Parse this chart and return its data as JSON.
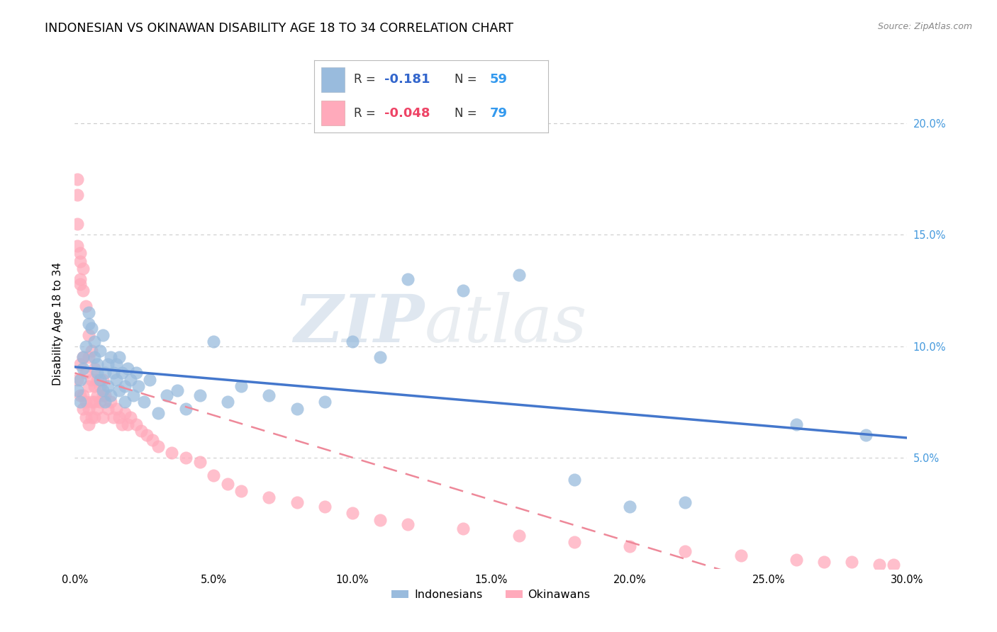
{
  "title": "INDONESIAN VS OKINAWAN DISABILITY AGE 18 TO 34 CORRELATION CHART",
  "source": "Source: ZipAtlas.com",
  "ylabel": "Disability Age 18 to 34",
  "xlim": [
    0.0,
    0.3
  ],
  "ylim": [
    0.0,
    0.22
  ],
  "blue_color": "#99BBDD",
  "pink_color": "#FFAABB",
  "blue_line_color": "#4477CC",
  "pink_line_color": "#EE8899",
  "blue_R": -0.181,
  "blue_N": 59,
  "pink_R": -0.048,
  "pink_N": 79,
  "watermark_zip": "ZIP",
  "watermark_atlas": "atlas",
  "title_fontsize": 12.5,
  "axis_label_fontsize": 11,
  "tick_fontsize": 10.5,
  "indonesian_x": [
    0.001,
    0.002,
    0.002,
    0.003,
    0.003,
    0.004,
    0.005,
    0.005,
    0.006,
    0.007,
    0.007,
    0.008,
    0.008,
    0.009,
    0.009,
    0.01,
    0.01,
    0.011,
    0.011,
    0.012,
    0.012,
    0.013,
    0.013,
    0.014,
    0.015,
    0.015,
    0.016,
    0.016,
    0.017,
    0.018,
    0.018,
    0.019,
    0.02,
    0.021,
    0.022,
    0.023,
    0.025,
    0.027,
    0.03,
    0.033,
    0.037,
    0.04,
    0.045,
    0.05,
    0.055,
    0.06,
    0.07,
    0.08,
    0.09,
    0.1,
    0.11,
    0.12,
    0.14,
    0.16,
    0.18,
    0.2,
    0.22,
    0.26,
    0.285
  ],
  "indonesian_y": [
    0.08,
    0.075,
    0.085,
    0.09,
    0.095,
    0.1,
    0.11,
    0.115,
    0.108,
    0.102,
    0.095,
    0.088,
    0.092,
    0.085,
    0.098,
    0.08,
    0.105,
    0.088,
    0.075,
    0.092,
    0.082,
    0.095,
    0.078,
    0.088,
    0.085,
    0.092,
    0.08,
    0.095,
    0.088,
    0.075,
    0.082,
    0.09,
    0.085,
    0.078,
    0.088,
    0.082,
    0.075,
    0.085,
    0.07,
    0.078,
    0.08,
    0.072,
    0.078,
    0.102,
    0.075,
    0.082,
    0.078,
    0.072,
    0.075,
    0.102,
    0.095,
    0.13,
    0.125,
    0.132,
    0.04,
    0.028,
    0.03,
    0.065,
    0.06
  ],
  "okinawan_x": [
    0.001,
    0.001,
    0.001,
    0.001,
    0.001,
    0.002,
    0.002,
    0.002,
    0.002,
    0.002,
    0.002,
    0.003,
    0.003,
    0.003,
    0.003,
    0.003,
    0.004,
    0.004,
    0.004,
    0.004,
    0.005,
    0.005,
    0.005,
    0.005,
    0.005,
    0.006,
    0.006,
    0.006,
    0.006,
    0.007,
    0.007,
    0.007,
    0.007,
    0.008,
    0.008,
    0.008,
    0.009,
    0.009,
    0.01,
    0.01,
    0.01,
    0.011,
    0.012,
    0.013,
    0.014,
    0.015,
    0.016,
    0.017,
    0.018,
    0.019,
    0.02,
    0.022,
    0.024,
    0.026,
    0.028,
    0.03,
    0.035,
    0.04,
    0.045,
    0.05,
    0.055,
    0.06,
    0.07,
    0.08,
    0.09,
    0.1,
    0.11,
    0.12,
    0.14,
    0.16,
    0.18,
    0.2,
    0.22,
    0.24,
    0.26,
    0.27,
    0.28,
    0.29,
    0.295
  ],
  "okinawan_y": [
    0.175,
    0.168,
    0.155,
    0.085,
    0.145,
    0.138,
    0.128,
    0.092,
    0.13,
    0.142,
    0.078,
    0.125,
    0.135,
    0.095,
    0.078,
    0.072,
    0.118,
    0.088,
    0.075,
    0.068,
    0.105,
    0.095,
    0.082,
    0.072,
    0.065,
    0.098,
    0.085,
    0.075,
    0.068,
    0.09,
    0.082,
    0.075,
    0.068,
    0.085,
    0.078,
    0.072,
    0.082,
    0.075,
    0.085,
    0.078,
    0.068,
    0.078,
    0.072,
    0.075,
    0.068,
    0.072,
    0.068,
    0.065,
    0.07,
    0.065,
    0.068,
    0.065,
    0.062,
    0.06,
    0.058,
    0.055,
    0.052,
    0.05,
    0.048,
    0.042,
    0.038,
    0.035,
    0.032,
    0.03,
    0.028,
    0.025,
    0.022,
    0.02,
    0.018,
    0.015,
    0.012,
    0.01,
    0.008,
    0.006,
    0.004,
    0.003,
    0.003,
    0.002,
    0.002
  ]
}
